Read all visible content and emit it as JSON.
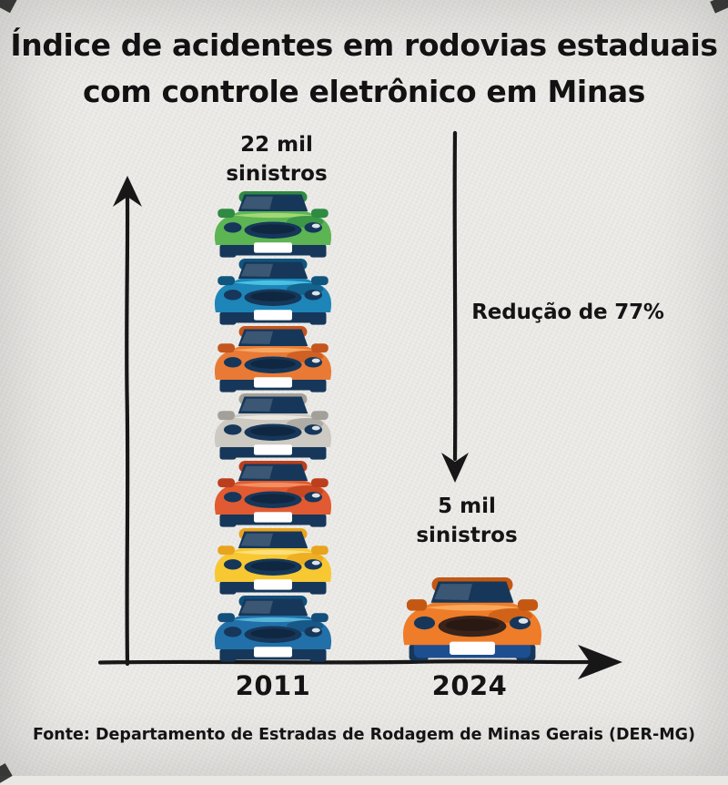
{
  "title_line1": "Índice de acidentes em rodovias estaduais",
  "title_line2": "com controle eletrônico em Minas",
  "labels": {
    "value_2011_line1": "22 mil",
    "value_2011_line2": "sinistros",
    "value_2024_line1": "5 mil",
    "value_2024_line2": "sinistros",
    "reduction": "Redução de 77%",
    "axis_2011": "2011",
    "axis_2024": "2024",
    "source": "Fonte: Departamento de Estradas de Rodagem de Minas Gerais (DER-MG)"
  },
  "chart_data": {
    "type": "bar",
    "subtype": "pictogram-stack",
    "title": "Índice de acidentes em rodovias estaduais com controle eletrônico em Minas",
    "categories": [
      "2011",
      "2024"
    ],
    "values": [
      22000,
      5000
    ],
    "value_labels": [
      "22 mil sinistros",
      "5 mil sinistros"
    ],
    "unit": "sinistros",
    "annotation": "Redução de 77%",
    "reduction_percent": 77,
    "icon": "car-front-view",
    "icon_counts": [
      7,
      1
    ],
    "xlabel": "",
    "ylabel": "",
    "grid": false,
    "legend": false,
    "source": "Fonte: Departamento de Estradas de Rodagem de Minas Gerais (DER-MG)",
    "car_colors_2011": [
      {
        "name": "green",
        "main": "#5cb453",
        "shade": "#2f8a42",
        "light": "#a5d977"
      },
      {
        "name": "blue",
        "main": "#1d85b8",
        "shade": "#10557e",
        "light": "#4cc4e4"
      },
      {
        "name": "orange",
        "main": "#e97a35",
        "shade": "#c4551e",
        "light": "#f6ab66"
      },
      {
        "name": "silver",
        "main": "#cccac3",
        "shade": "#a2a099",
        "light": "#ebe9e3"
      },
      {
        "name": "red-orange",
        "main": "#e15a31",
        "shade": "#bc3f1d",
        "light": "#f29263"
      },
      {
        "name": "yellow",
        "main": "#f7c832",
        "shade": "#e9a41d",
        "light": "#fbe07e"
      },
      {
        "name": "blue",
        "main": "#2170a9",
        "shade": "#144f7b",
        "light": "#5cb8da"
      }
    ],
    "car_color_2024": {
      "name": "orange",
      "main": "#ee7c28",
      "shade": "#c45812",
      "light": "#f9ab5e",
      "bumper": "#1d4e8f",
      "grille": "#39231a"
    }
  },
  "colors": {
    "background": "#e9e8e5",
    "ink": "#161616",
    "car_dark_navy": "#16375a",
    "license_plate": "#ffffff"
  }
}
